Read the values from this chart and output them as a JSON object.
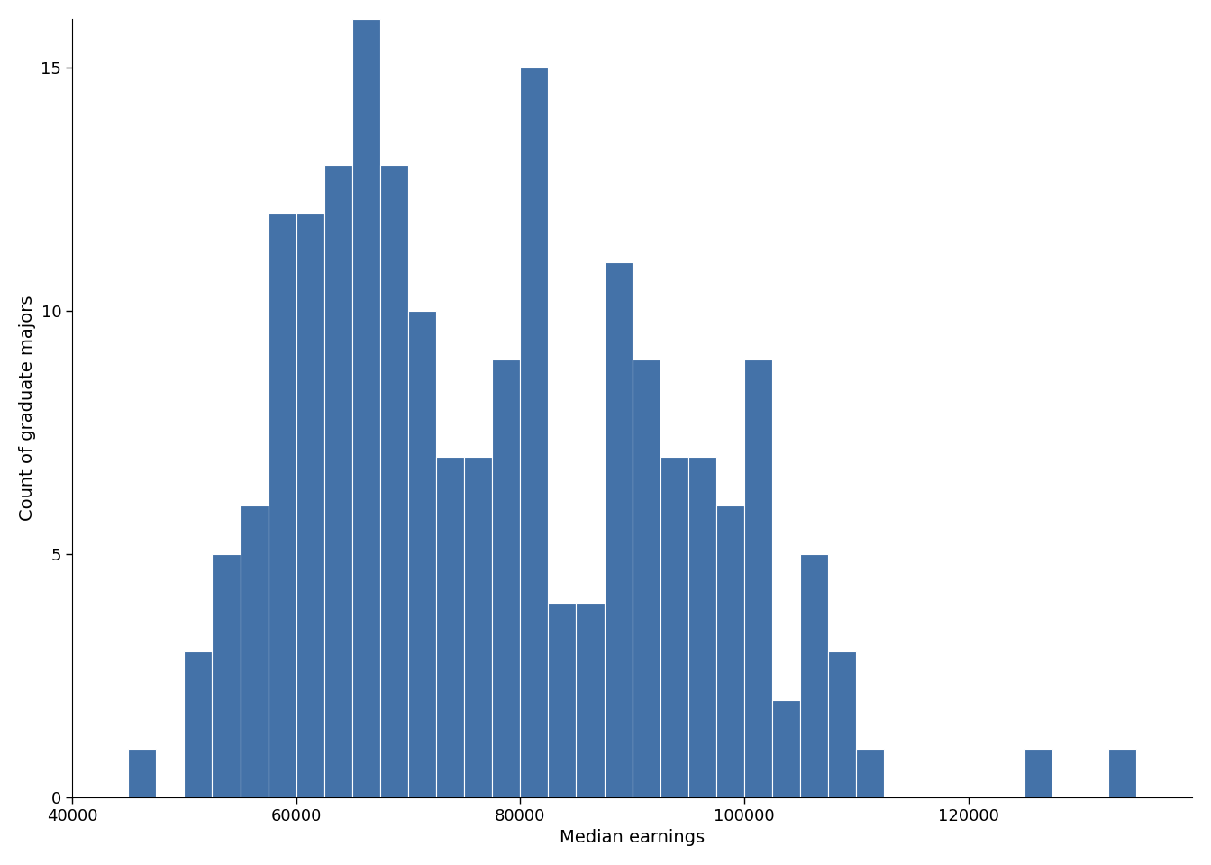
{
  "bin_edges": [
    45000,
    47500,
    50000,
    52500,
    55000,
    57500,
    60000,
    62500,
    65000,
    67500,
    70000,
    72500,
    75000,
    77500,
    80000,
    82500,
    85000,
    87500,
    90000,
    92500,
    95000,
    97500,
    100000,
    102500,
    105000,
    107500,
    110000,
    112500,
    115000,
    117500,
    120000,
    122500,
    125000,
    127500,
    130000,
    132500,
    135000
  ],
  "counts": [
    1,
    0,
    3,
    5,
    6,
    12,
    12,
    13,
    16,
    13,
    10,
    7,
    7,
    9,
    15,
    4,
    4,
    11,
    9,
    7,
    7,
    6,
    9,
    2,
    5,
    3,
    1,
    0,
    0,
    0,
    0,
    0,
    1,
    0,
    0,
    1
  ],
  "bar_color": "#4472a8",
  "bar_edgecolor": "white",
  "bar_linewidth": 0.8,
  "xlabel": "Median earnings",
  "ylabel": "Count of graduate majors",
  "xlim": [
    40000,
    140000
  ],
  "ylim": [
    0,
    16
  ],
  "xticks": [
    40000,
    60000,
    80000,
    100000,
    120000
  ],
  "yticks": [
    0,
    5,
    10,
    15
  ],
  "xlabel_fontsize": 14,
  "ylabel_fontsize": 14,
  "tick_fontsize": 13,
  "background_color": "white"
}
